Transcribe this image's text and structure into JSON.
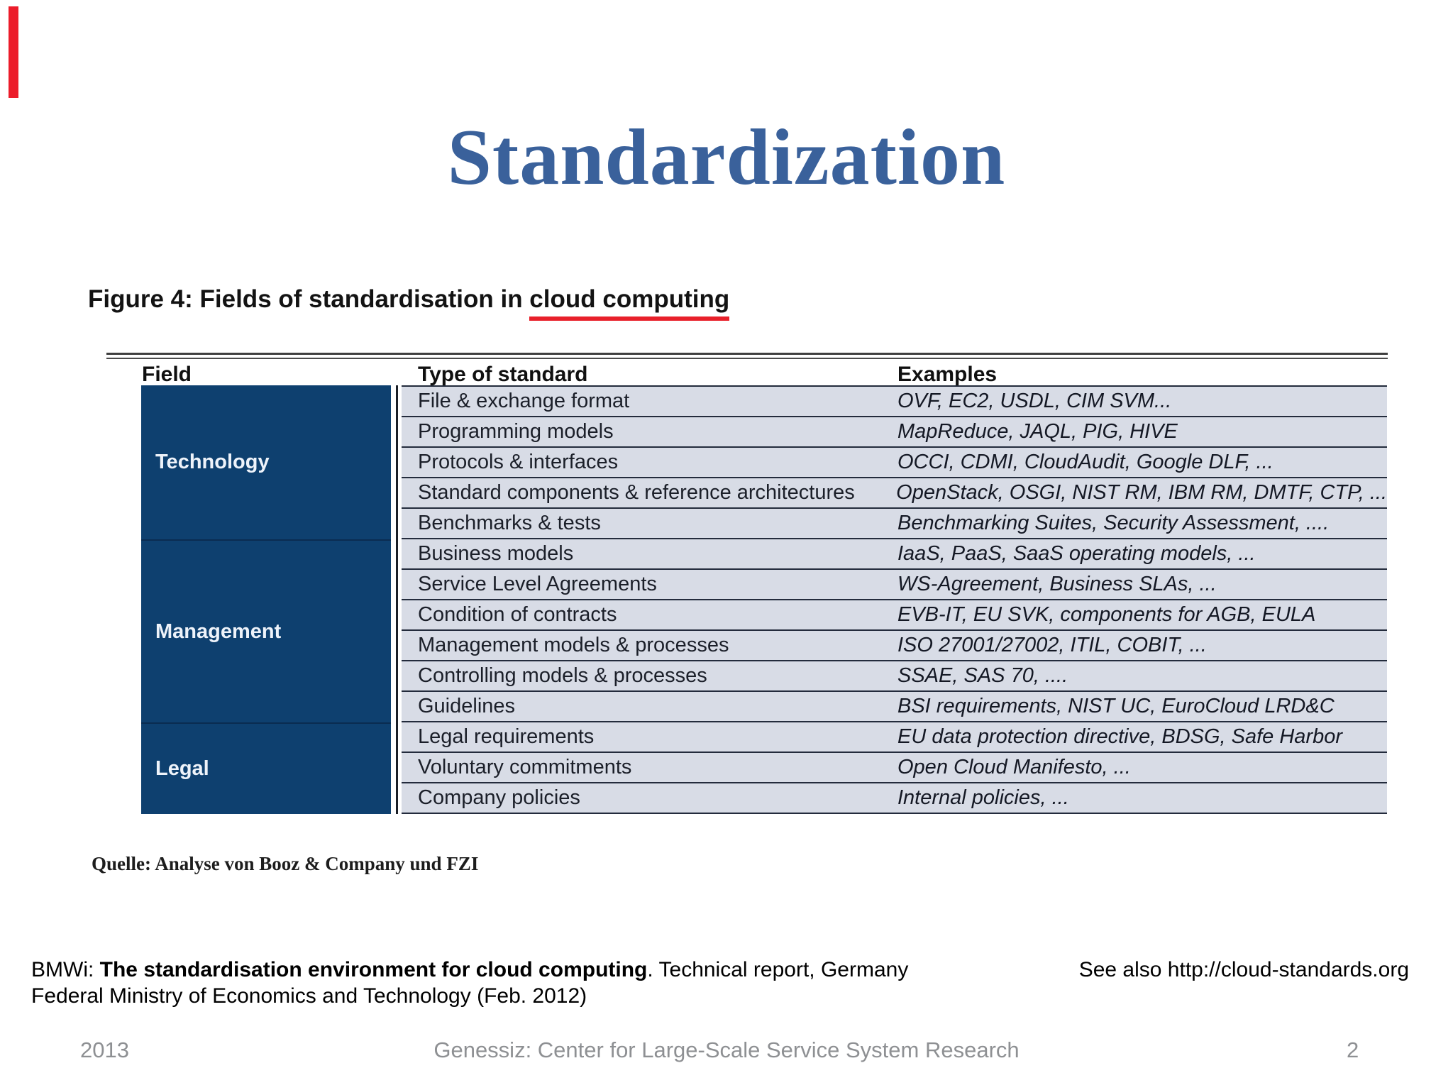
{
  "slide": {
    "title": "Standardization",
    "footer": {
      "year": "2013",
      "center": "Genessiz: Center for Large-Scale Service System Research",
      "page": "2"
    }
  },
  "figure": {
    "caption": {
      "prefix": "Figure 4: Fields of standardisation in ",
      "underlined": "cloud computing"
    },
    "source_line": "Quelle: Analyse von Booz & Company und FZI",
    "table": {
      "headers": {
        "field": "Field",
        "type": "Type of standard",
        "examples": "Examples"
      },
      "groups": [
        {
          "field": "Technology",
          "rows": [
            {
              "type": "File & exchange format",
              "examples": "OVF, EC2, USDL, CIM SVM..."
            },
            {
              "type": "Programming models",
              "examples": "MapReduce, JAQL, PIG, HIVE"
            },
            {
              "type": "Protocols & interfaces",
              "examples": "OCCI, CDMI, CloudAudit, Google DLF, ..."
            },
            {
              "type": "Standard components & reference architectures",
              "examples": "OpenStack, OSGI, NIST RM, IBM RM, DMTF, CTP, ..."
            },
            {
              "type": "Benchmarks & tests",
              "examples": "Benchmarking Suites, Security Assessment, ...."
            }
          ]
        },
        {
          "field": "Management",
          "rows": [
            {
              "type": "Business models",
              "examples": "IaaS, PaaS, SaaS operating models, ..."
            },
            {
              "type": "Service Level Agreements",
              "examples": "WS-Agreement, Business SLAs, ..."
            },
            {
              "type": "Condition of contracts",
              "examples": "EVB-IT, EU SVK, components for AGB, EULA"
            },
            {
              "type": "Management models & processes",
              "examples": "ISO 27001/27002, ITIL, COBIT, ..."
            },
            {
              "type": "Controlling models & processes",
              "examples": "SSAE, SAS 70, ...."
            },
            {
              "type": "Guidelines",
              "examples": "BSI requirements, NIST UC, EuroCloud LRD&C"
            }
          ]
        },
        {
          "field": "Legal",
          "rows": [
            {
              "type": "Legal requirements",
              "examples": "EU data protection directive, BDSG, Safe Harbor"
            },
            {
              "type": "Voluntary commitments",
              "examples": "Open Cloud Manifesto, ..."
            },
            {
              "type": "Company policies",
              "examples": "Internal policies, ..."
            }
          ]
        }
      ]
    }
  },
  "citation": {
    "prefix": "BMWi: ",
    "bold": "The standardisation environment for cloud computing",
    "suffix": ". Technical report, Germany",
    "line2": "Federal Ministry of Economics and Technology (Feb. 2012)"
  },
  "see_also": "See also http://cloud-standards.org",
  "colors": {
    "title_blue": "#3a619b",
    "field_column_navy": "#0e406f",
    "row_background": "#d8dce6",
    "underline_red": "#e8202a",
    "accent_bar_red": "#ec1c2a",
    "footer_gray": "#8e9093"
  }
}
